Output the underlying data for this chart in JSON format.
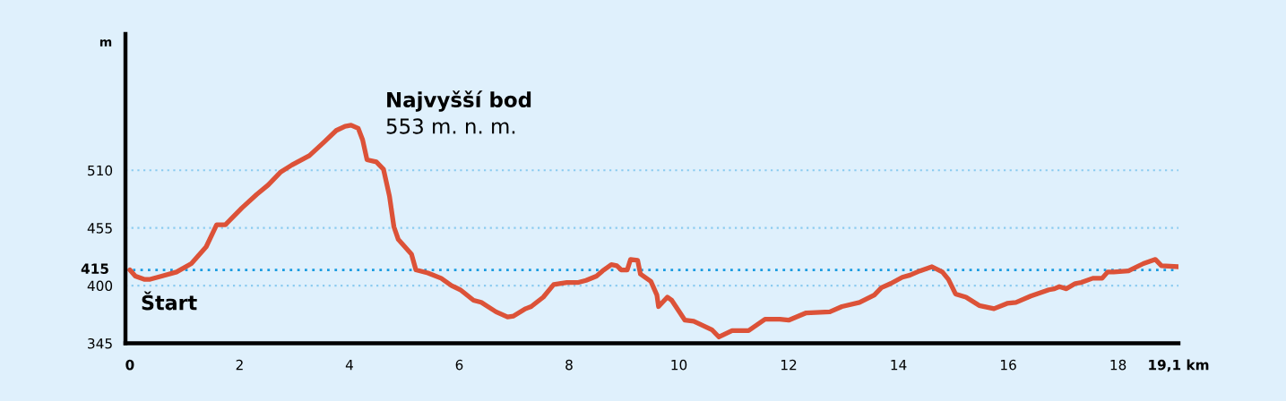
{
  "chart_data": {
    "type": "line",
    "ylabel": "m",
    "x": [
      0,
      0.1,
      0.26,
      0.37,
      0.58,
      0.85,
      1.12,
      1.39,
      1.58,
      1.74,
      2.04,
      2.31,
      2.52,
      2.74,
      2.95,
      3.27,
      3.54,
      3.76,
      3.92,
      4.03,
      4.16,
      4.24,
      4.32,
      4.49,
      4.62,
      4.73,
      4.81,
      4.89,
      5.13,
      5.21,
      5.43,
      5.67,
      5.86,
      6.02,
      6.26,
      6.4,
      6.67,
      6.88,
      6.99,
      7.21,
      7.31,
      7.53,
      7.72,
      7.96,
      8.17,
      8.31,
      8.5,
      8.61,
      8.77,
      8.87,
      8.95,
      9.06,
      9.12,
      9.25,
      9.3,
      9.49,
      9.6,
      9.63,
      9.79,
      9.87,
      10.11,
      10.27,
      10.6,
      10.73,
      10.97,
      11.27,
      11.57,
      11.84,
      12.0,
      12.32,
      12.75,
      12.97,
      13.29,
      13.56,
      13.69,
      13.86,
      14.07,
      14.21,
      14.39,
      14.61,
      14.8,
      14.91,
      15.04,
      15.23,
      15.47,
      15.74,
      15.98,
      16.14,
      16.41,
      16.74,
      16.84,
      16.93,
      17.06,
      17.22,
      17.33,
      17.54,
      17.71,
      17.81,
      17.92,
      18.19,
      18.46,
      18.68,
      18.79,
      19.1
    ],
    "values": [
      415,
      409,
      406,
      406,
      409,
      413,
      421,
      437,
      458,
      458,
      474,
      487,
      496,
      508,
      515,
      524,
      537,
      548,
      552,
      553,
      550,
      539,
      520,
      518,
      511,
      485,
      456,
      444,
      430,
      415,
      412,
      407,
      400,
      396,
      386,
      384,
      375,
      370,
      371,
      378,
      380,
      389,
      401,
      403,
      403,
      405,
      409,
      414,
      420,
      419,
      415,
      415,
      425,
      424,
      411,
      404,
      391,
      380,
      389,
      386,
      367,
      366,
      358,
      351,
      357,
      357,
      368,
      368,
      367,
      374,
      375,
      380,
      384,
      391,
      398,
      402,
      408,
      410,
      414,
      418,
      413,
      406,
      392,
      389,
      381,
      378,
      383,
      384,
      390,
      396,
      397,
      399,
      397,
      402,
      403,
      407,
      407,
      413,
      413,
      414,
      421,
      425,
      419,
      418
    ],
    "color": "#dc5238",
    "xlim": [
      -0.08,
      19.1
    ],
    "xticks": [
      0,
      2,
      4,
      6,
      8,
      10,
      12,
      14,
      16,
      18,
      {
        "value": 19.1,
        "label": "19,1 km"
      }
    ],
    "ylim": [
      345,
      640
    ],
    "yticks": [
      345,
      400,
      455,
      510
    ],
    "grid": "y",
    "ref_lines": [
      {
        "axis": "y",
        "value": 415,
        "label": "415",
        "color": "#1a9be0",
        "line_style": "dotted"
      }
    ],
    "annotations": [
      "Najvyšší bod",
      "553 m. n. m.",
      "Štart"
    ]
  }
}
